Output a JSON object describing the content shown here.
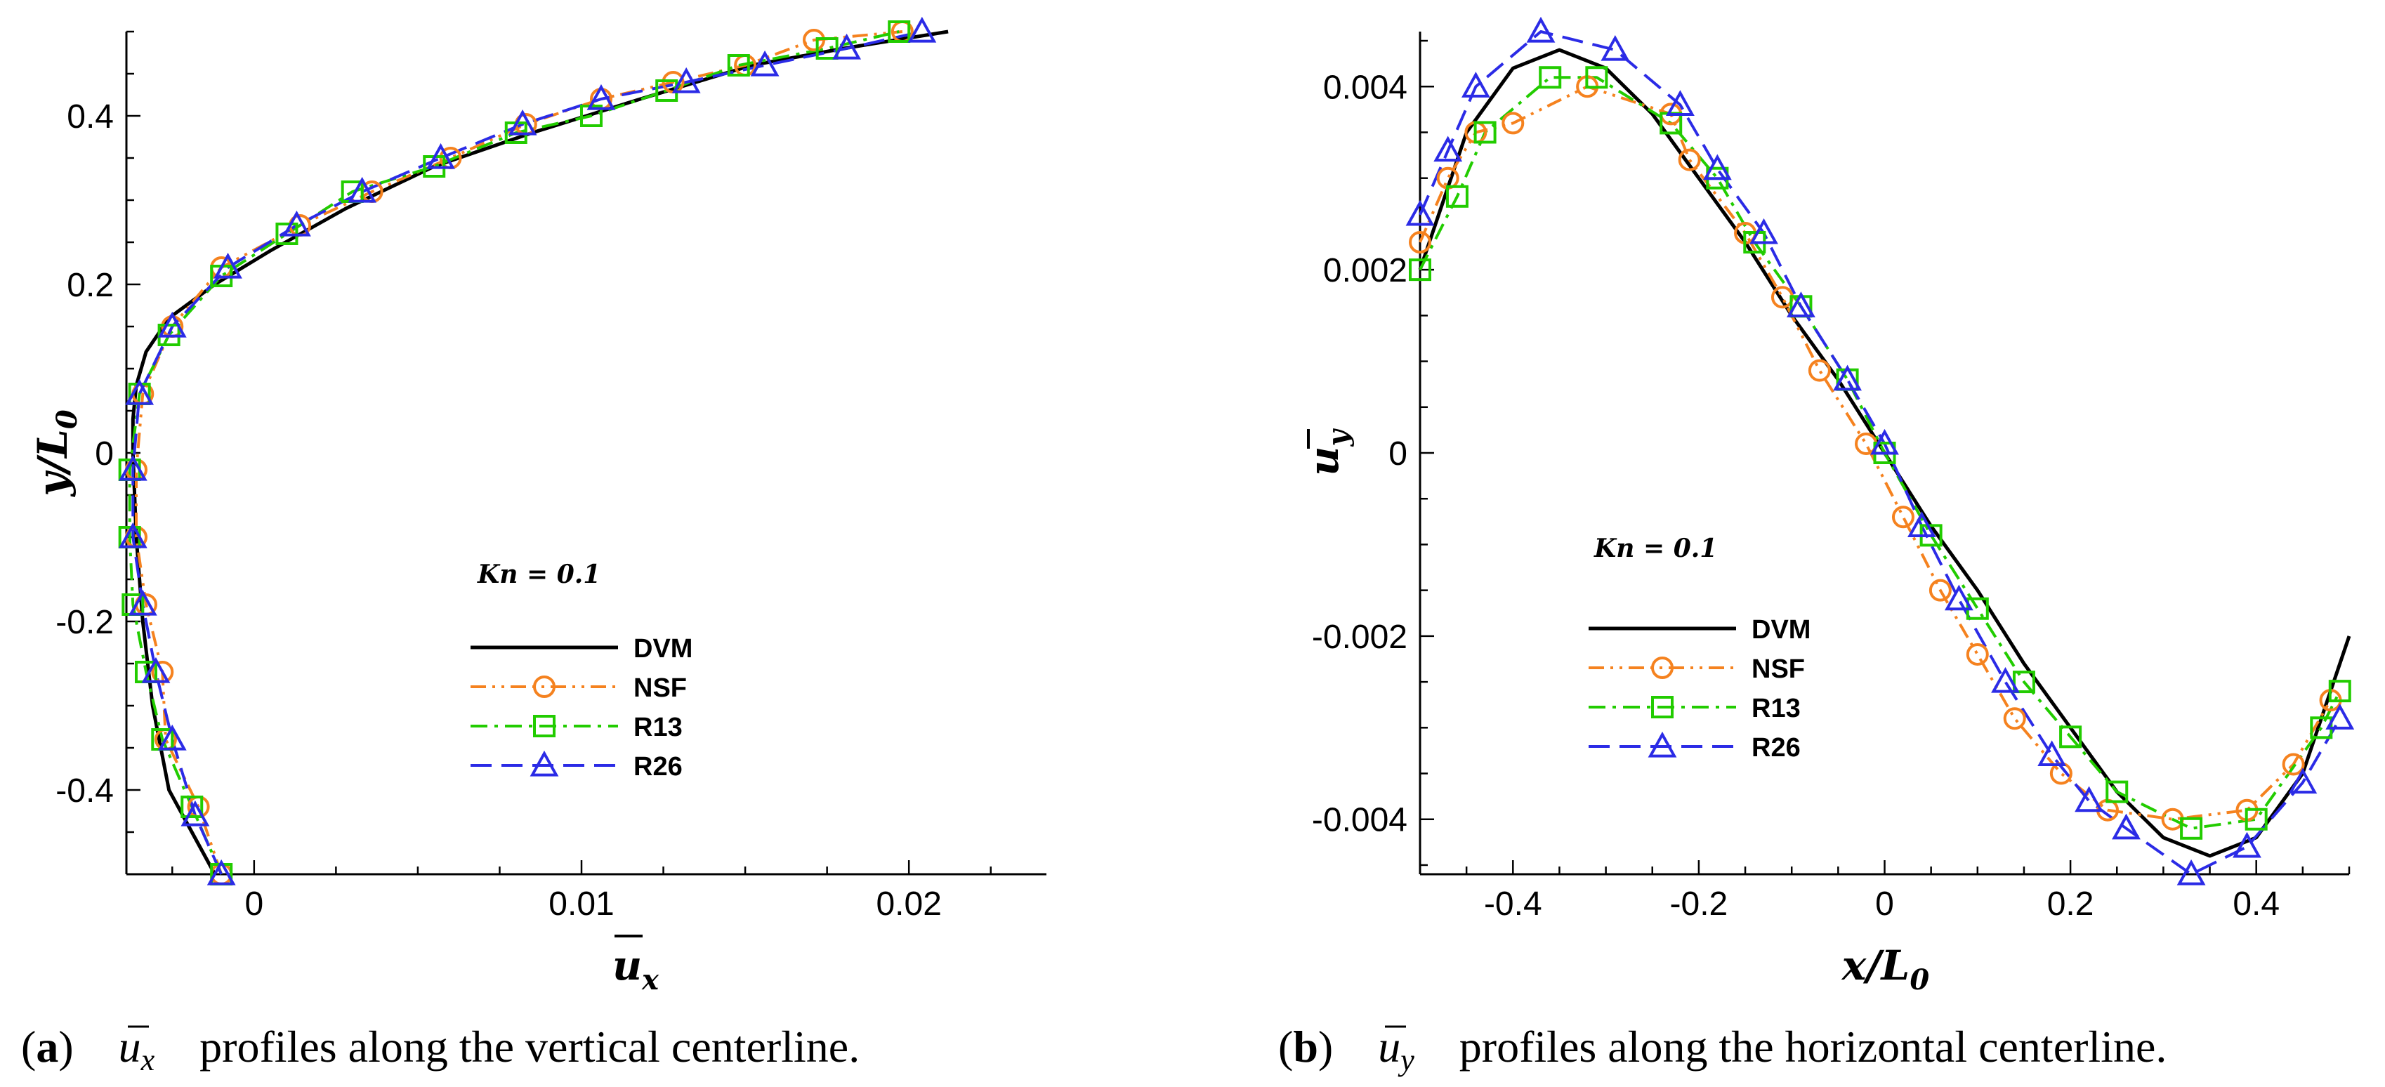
{
  "chart_data": [
    {
      "type": "line",
      "panel": "a",
      "annotation": "Kn = 0.1",
      "xlabel": "u_x",
      "ylabel": "y/L_0",
      "xlim": [
        -0.0039,
        0.0242
      ],
      "ylim": [
        -0.5,
        0.5
      ],
      "xticks": [
        0,
        0.01,
        0.02
      ],
      "xtick_labels": [
        "0",
        "0.01",
        "0.02"
      ],
      "yticks": [
        -0.4,
        -0.2,
        0,
        0.2,
        0.4
      ],
      "ytick_labels": [
        "-0.4",
        "-0.2",
        "0",
        "0.2",
        "0.4"
      ],
      "legend": [
        "DVM",
        "NSF",
        "R13",
        "R26"
      ],
      "legend_position": "center",
      "series": [
        {
          "name": "DVM",
          "color": "#000000",
          "dash": "solid",
          "marker": "none",
          "x": [
            -0.0012,
            -0.0019,
            -0.0026,
            -0.0031,
            -0.0034,
            -0.0036,
            -0.0037,
            -0.0037,
            -0.0036,
            -0.0033,
            -0.0026,
            -0.0012,
            0.0005,
            0.0028,
            0.0055,
            0.0085,
            0.0118,
            0.0152,
            0.018,
            0.0212
          ],
          "y": [
            -0.5,
            -0.45,
            -0.4,
            -0.3,
            -0.2,
            -0.1,
            0.0,
            0.04,
            0.08,
            0.12,
            0.16,
            0.2,
            0.24,
            0.29,
            0.34,
            0.38,
            0.42,
            0.46,
            0.48,
            0.5
          ]
        },
        {
          "name": "NSF",
          "color": "#F5821F",
          "dash": "dash-dot-dot",
          "marker": "circle",
          "x": [
            -0.001,
            -0.0017,
            -0.0027,
            -0.0028,
            -0.0033,
            -0.0036,
            -0.0036,
            -0.0034,
            -0.0025,
            -0.001,
            0.0014,
            0.0036,
            0.006,
            0.0083,
            0.0106,
            0.0128,
            0.015,
            0.0171,
            0.0198
          ],
          "y": [
            -0.5,
            -0.42,
            -0.34,
            -0.26,
            -0.18,
            -0.1,
            -0.02,
            0.07,
            0.15,
            0.22,
            0.27,
            0.31,
            0.35,
            0.39,
            0.42,
            0.44,
            0.46,
            0.49,
            0.5
          ]
        },
        {
          "name": "R13",
          "color": "#22CC00",
          "dash": "dash-dot",
          "marker": "square",
          "x": [
            -0.001,
            -0.0019,
            -0.0028,
            -0.0033,
            -0.0037,
            -0.0038,
            -0.0038,
            -0.0035,
            -0.0026,
            -0.001,
            0.001,
            0.003,
            0.0055,
            0.008,
            0.0103,
            0.0126,
            0.0148,
            0.0175,
            0.0197
          ],
          "y": [
            -0.5,
            -0.42,
            -0.34,
            -0.26,
            -0.18,
            -0.1,
            -0.02,
            0.07,
            0.14,
            0.21,
            0.26,
            0.31,
            0.34,
            0.38,
            0.4,
            0.43,
            0.46,
            0.48,
            0.5
          ]
        },
        {
          "name": "R26",
          "color": "#2B2BE6",
          "dash": "dash",
          "marker": "triangle",
          "x": [
            -0.001,
            -0.0018,
            -0.0025,
            -0.003,
            -0.0034,
            -0.0037,
            -0.0037,
            -0.0035,
            -0.0025,
            -0.0008,
            0.0013,
            0.0033,
            0.0057,
            0.0082,
            0.0106,
            0.0132,
            0.0156,
            0.0181,
            0.0204
          ],
          "y": [
            -0.5,
            -0.43,
            -0.34,
            -0.26,
            -0.18,
            -0.1,
            -0.02,
            0.07,
            0.15,
            0.22,
            0.27,
            0.31,
            0.35,
            0.39,
            0.42,
            0.44,
            0.46,
            0.48,
            0.5
          ]
        }
      ]
    },
    {
      "type": "line",
      "panel": "b",
      "annotation": "Kn = 0.1",
      "xlabel": "x/L_0",
      "ylabel": "u_y",
      "xlim": [
        -0.5,
        0.5
      ],
      "ylim": [
        -0.0046,
        0.0046
      ],
      "xticks": [
        -0.4,
        -0.2,
        0,
        0.2,
        0.4
      ],
      "xtick_labels": [
        "-0.4",
        "-0.2",
        "0",
        "0.2",
        "0.4"
      ],
      "yticks": [
        -0.004,
        -0.002,
        0,
        0.002,
        0.004
      ],
      "ytick_labels": [
        "-0.004",
        "-0.002",
        "0",
        "0.002",
        "0.004"
      ],
      "legend": [
        "DVM",
        "NSF",
        "R13",
        "R26"
      ],
      "legend_position": "lower-left",
      "series": [
        {
          "name": "DVM",
          "color": "#000000",
          "dash": "solid",
          "marker": "none",
          "x": [
            -0.5,
            -0.45,
            -0.4,
            -0.35,
            -0.3,
            -0.25,
            -0.2,
            -0.15,
            -0.1,
            -0.05,
            0,
            0.05,
            0.1,
            0.15,
            0.2,
            0.25,
            0.3,
            0.35,
            0.4,
            0.45,
            0.5
          ],
          "y": [
            0.002,
            0.0035,
            0.0042,
            0.0044,
            0.0042,
            0.0037,
            0.003,
            0.0023,
            0.0015,
            0.0008,
            0.0,
            -0.0008,
            -0.0015,
            -0.0023,
            -0.003,
            -0.0037,
            -0.0042,
            -0.0044,
            -0.0042,
            -0.0035,
            -0.002
          ]
        },
        {
          "name": "NSF",
          "color": "#F5821F",
          "dash": "dash-dot-dot",
          "marker": "circle",
          "x": [
            -0.5,
            -0.47,
            -0.44,
            -0.4,
            -0.32,
            -0.23,
            -0.21,
            -0.15,
            -0.11,
            -0.07,
            -0.02,
            0.02,
            0.06,
            0.1,
            0.14,
            0.19,
            0.24,
            0.31,
            0.39,
            0.44,
            0.48
          ],
          "y": [
            0.0023,
            0.003,
            0.0035,
            0.0036,
            0.004,
            0.0037,
            0.0032,
            0.0024,
            0.0017,
            0.0009,
            0.0001,
            -0.0007,
            -0.0015,
            -0.0022,
            -0.0029,
            -0.0035,
            -0.0039,
            -0.004,
            -0.0039,
            -0.0034,
            -0.0027
          ]
        },
        {
          "name": "R13",
          "color": "#22CC00",
          "dash": "dash-dot",
          "marker": "square",
          "x": [
            -0.5,
            -0.46,
            -0.43,
            -0.36,
            -0.31,
            -0.23,
            -0.18,
            -0.14,
            -0.09,
            -0.04,
            0.0,
            0.05,
            0.1,
            0.15,
            0.2,
            0.25,
            0.33,
            0.4,
            0.47,
            0.49
          ],
          "y": [
            0.002,
            0.0028,
            0.0035,
            0.0041,
            0.0041,
            0.0036,
            0.003,
            0.0023,
            0.0016,
            0.0008,
            0.0,
            -0.0009,
            -0.0017,
            -0.0025,
            -0.0031,
            -0.0037,
            -0.0041,
            -0.004,
            -0.003,
            -0.0026
          ]
        },
        {
          "name": "R26",
          "color": "#2B2BE6",
          "dash": "dash",
          "marker": "triangle",
          "x": [
            -0.5,
            -0.47,
            -0.44,
            -0.37,
            -0.29,
            -0.22,
            -0.18,
            -0.13,
            -0.09,
            -0.04,
            0.0,
            0.04,
            0.08,
            0.13,
            0.18,
            0.22,
            0.26,
            0.33,
            0.39,
            0.45,
            0.49
          ],
          "y": [
            0.0026,
            0.0033,
            0.004,
            0.0046,
            0.0044,
            0.0038,
            0.0031,
            0.0024,
            0.0016,
            0.0008,
            0.0001,
            -0.0008,
            -0.0016,
            -0.0025,
            -0.0033,
            -0.0038,
            -0.0041,
            -0.0046,
            -0.0043,
            -0.0036,
            -0.0029
          ]
        }
      ]
    }
  ],
  "captions": [
    {
      "label": "(a)",
      "symbol": "u",
      "sub": "x",
      "text": "profiles along the vertical centerline."
    },
    {
      "label": "(b)",
      "symbol": "u",
      "sub": "y",
      "text": "profiles along the horizontal centerline."
    }
  ]
}
